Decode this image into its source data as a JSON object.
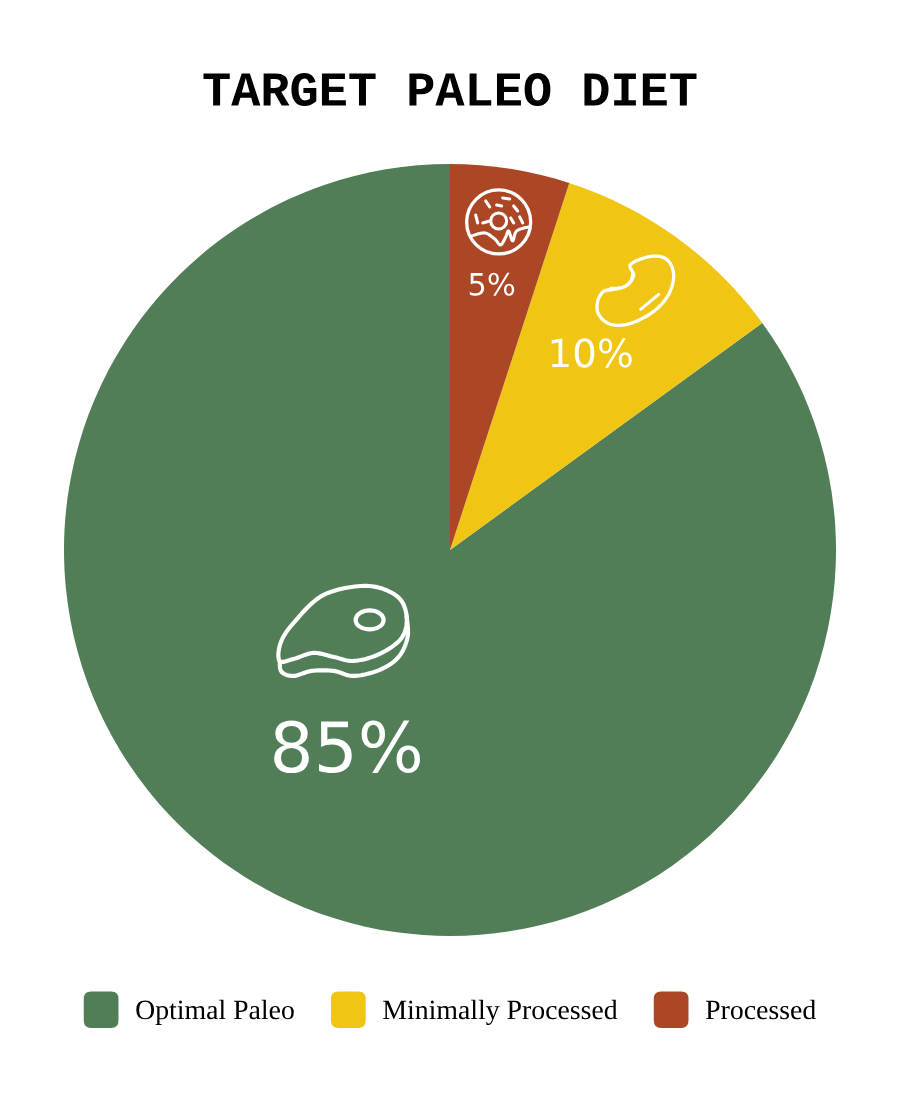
{
  "chart_data": {
    "type": "pie",
    "title": "TARGET PALEO DIET",
    "categories": [
      "Optimal Paleo",
      "Minimally Processed",
      "Processed"
    ],
    "values": [
      85,
      10,
      5
    ],
    "colors": [
      "#517d57",
      "#f0c513",
      "#ac4725"
    ],
    "value_labels": [
      "85%",
      "10%",
      "5%"
    ],
    "legend": "bottom"
  }
}
